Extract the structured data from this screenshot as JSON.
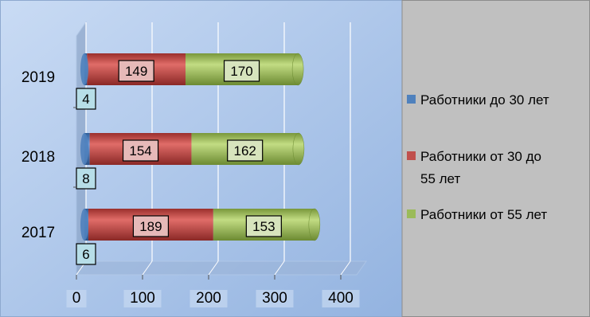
{
  "chart_data": {
    "type": "bar",
    "orientation": "horizontal",
    "stacked": true,
    "style": "3d-cylinder",
    "categories": [
      "2017",
      "2018",
      "2019"
    ],
    "series": [
      {
        "name": "Работники до 30 лет",
        "values": [
          6,
          8,
          4
        ],
        "color": "#4f81bd",
        "label_bg": "#b7dee8"
      },
      {
        "name": "Работники от 30 до 55 лет",
        "values": [
          189,
          154,
          149
        ],
        "color": "#c0504d",
        "label_bg": "#e6b9b8"
      },
      {
        "name": "Работники от 55 лет",
        "values": [
          153,
          162,
          170
        ],
        "color": "#9bbb59",
        "label_bg": "#d7e4bd"
      }
    ],
    "x_ticks": [
      "0",
      "100",
      "200",
      "300",
      "400"
    ],
    "xlim": [
      0,
      400
    ],
    "grid": true,
    "legend_position": "right",
    "title": "",
    "xlabel": "",
    "ylabel": ""
  },
  "colors": {
    "plot_background": "#a9c4ea",
    "legend_background": "#c0c0c0",
    "gridline": "#ffffff",
    "tick_highlight": "#c6d9f1"
  }
}
